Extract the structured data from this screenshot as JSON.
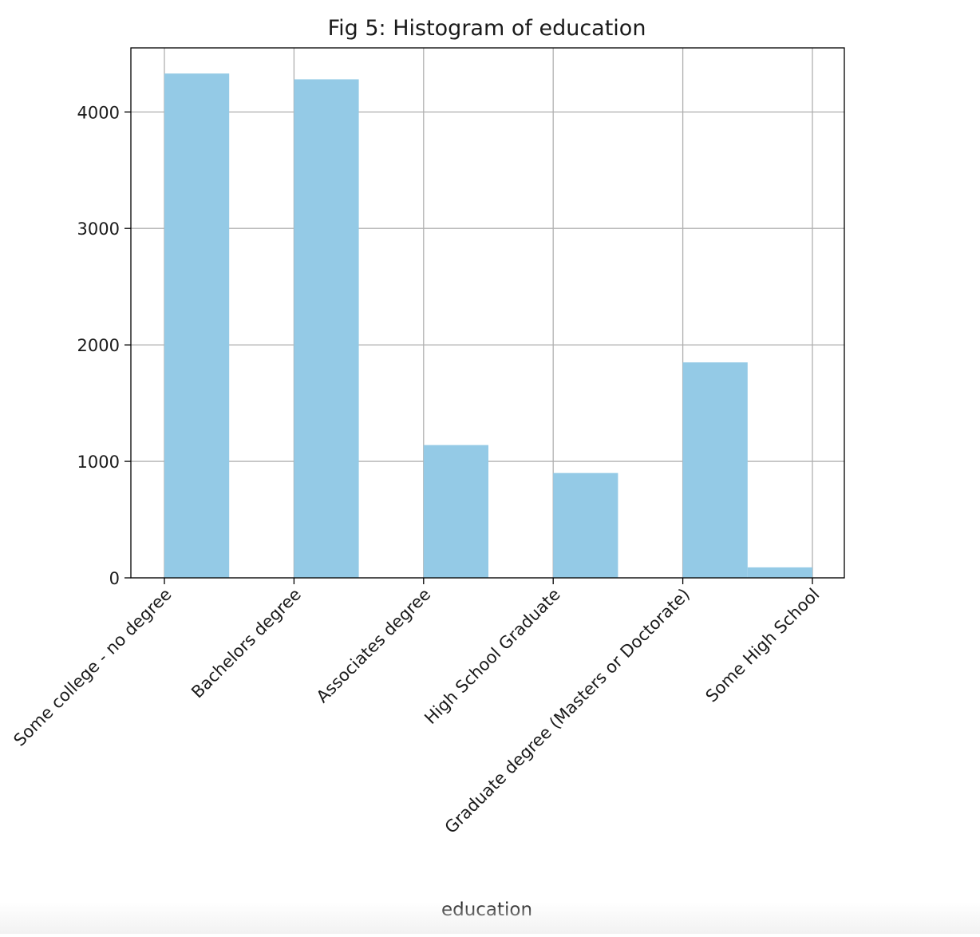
{
  "chart_data": {
    "type": "bar",
    "title": "Fig 5: Histogram of education",
    "xlabel": "education",
    "ylabel": "",
    "categories": [
      "Some college - no degree",
      "Bachelors degree",
      "Associates degree",
      "High School Graduate",
      "Graduate degree (Masters or Doctorate)",
      "Some High School"
    ],
    "values": [
      4330,
      4280,
      1140,
      900,
      1850,
      90
    ],
    "yticks": [
      0,
      1000,
      2000,
      3000,
      4000
    ],
    "ylim": [
      0,
      4550
    ],
    "grid": true,
    "bar_color": "#94cae6"
  }
}
